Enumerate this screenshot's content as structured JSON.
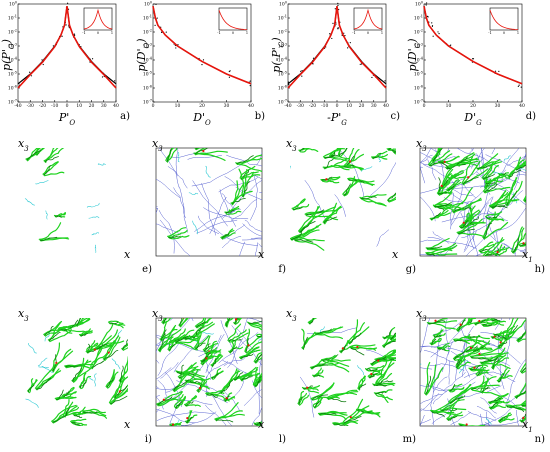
{
  "chart_data": [
    {
      "type": "line",
      "ylabel": "p(P'_O)",
      "xlabel": "P'_O",
      "panel_label": "a)",
      "x_ticks": [
        "-40",
        "-30",
        "-20",
        "-10",
        "0",
        "10",
        "20",
        "30",
        "40"
      ],
      "y_ticks": [
        "10^0",
        "10^-1",
        "10^-2",
        "10^-3",
        "10^-4",
        "10^-5",
        "10^-6",
        "10^-7"
      ],
      "xlim": [
        -40,
        40
      ],
      "log_y": true,
      "inset_x_ticks": [
        "-1",
        "0",
        "1"
      ],
      "series": [
        {
          "color": "#000000",
          "x": [
            -40,
            -30,
            -20,
            -10,
            -5,
            -2,
            0,
            2,
            5,
            10,
            20,
            30,
            40
          ],
          "y": [
            2e-06,
            1e-05,
            8e-05,
            0.001,
            0.006,
            0.03,
            0.7,
            0.03,
            0.006,
            0.001,
            8e-05,
            1e-05,
            2e-06
          ]
        },
        {
          "color": "#e8140c",
          "x": [
            -40,
            -30,
            -20,
            -10,
            -5,
            -2,
            0,
            2,
            5,
            10,
            20,
            30,
            40
          ],
          "y": [
            1e-06,
            9e-06,
            7e-05,
            0.0009,
            0.006,
            0.03,
            0.7,
            0.03,
            0.006,
            0.0009,
            7e-05,
            9e-06,
            1e-06
          ]
        }
      ]
    },
    {
      "type": "line",
      "ylabel": "p(D'_O)",
      "xlabel": "D'_O",
      "panel_label": "b)",
      "x_ticks": [
        "0",
        "10",
        "20",
        "30",
        "40"
      ],
      "y_ticks": [
        "10^0",
        "10^-1",
        "10^-2",
        "10^-3",
        "10^-4",
        "10^-5",
        "10^-6",
        "10^-7"
      ],
      "xlim": [
        0,
        40
      ],
      "log_y": true,
      "inset_x_ticks": [
        "-1",
        "0",
        "1"
      ],
      "series": [
        {
          "color": "#000000",
          "x": [
            0,
            1,
            2,
            5,
            10,
            20,
            30,
            40
          ],
          "y": [
            0.7,
            0.1,
            0.03,
            0.006,
            0.001,
            8e-05,
            1e-05,
            2e-06
          ]
        },
        {
          "color": "#e8140c",
          "x": [
            0,
            1,
            2,
            5,
            10,
            20,
            30,
            40
          ],
          "y": [
            0.7,
            0.1,
            0.03,
            0.006,
            0.001,
            8e-05,
            1e-05,
            2e-06
          ]
        }
      ]
    },
    {
      "type": "line",
      "ylabel": "p(-P'_G)",
      "xlabel": "-P'_G",
      "panel_label": "c)",
      "x_ticks": [
        "-40",
        "-30",
        "-20",
        "-10",
        "0",
        "10",
        "20",
        "30",
        "40"
      ],
      "y_ticks": [
        "10^0",
        "10^-1",
        "10^-2",
        "10^-3",
        "10^-4",
        "10^-5",
        "10^-6",
        "10^-7"
      ],
      "xlim": [
        -40,
        40
      ],
      "log_y": true,
      "inset_x_ticks": [
        "-1",
        "0",
        "1"
      ],
      "series": [
        {
          "color": "#000000",
          "x": [
            -40,
            -30,
            -20,
            -10,
            -5,
            -2,
            0,
            2,
            5,
            10,
            20,
            30,
            40
          ],
          "y": [
            2e-06,
            1e-05,
            8e-05,
            0.001,
            0.006,
            0.03,
            0.7,
            0.03,
            0.006,
            0.001,
            8e-05,
            1e-05,
            2e-06
          ]
        },
        {
          "color": "#e8140c",
          "x": [
            -40,
            -30,
            -20,
            -10,
            -5,
            -2,
            0,
            2,
            5,
            10,
            20,
            30,
            40
          ],
          "y": [
            1e-06,
            9e-06,
            7e-05,
            0.0009,
            0.006,
            0.03,
            0.7,
            0.03,
            0.006,
            0.0009,
            7e-05,
            9e-06,
            1e-06
          ]
        }
      ]
    },
    {
      "type": "line",
      "ylabel": "p(D'_G)",
      "xlabel": "D'_G",
      "panel_label": "d)",
      "x_ticks": [
        "0",
        "10",
        "20",
        "30",
        "40"
      ],
      "y_ticks": [
        "10^0",
        "10^-1",
        "10^-2",
        "10^-3",
        "10^-4",
        "10^-5",
        "10^-6",
        "10^-7"
      ],
      "xlim": [
        0,
        40
      ],
      "log_y": true,
      "inset_x_ticks": [
        "-1",
        "0",
        "1"
      ],
      "series": [
        {
          "color": "#000000",
          "x": [
            0,
            1,
            2,
            5,
            10,
            20,
            30,
            40
          ],
          "y": [
            0.7,
            0.1,
            0.03,
            0.006,
            0.001,
            8e-05,
            1e-05,
            2e-06
          ]
        },
        {
          "color": "#e8140c",
          "x": [
            0,
            1,
            2,
            5,
            10,
            20,
            30,
            40
          ],
          "y": [
            0.7,
            0.1,
            0.03,
            0.006,
            0.001,
            8e-05,
            1e-05,
            2e-06
          ]
        }
      ]
    }
  ],
  "contour_panels": {
    "row1": [
      {
        "ylabel": "x_3",
        "xlabel": "x",
        "panel_label": ""
      },
      {
        "ylabel": "x_3",
        "xlabel": "x",
        "panel_label": "e)"
      },
      {
        "ylabel": "x_3",
        "xlabel": "x",
        "panel_label": "f)"
      },
      {
        "ylabel": "x_3",
        "xlabel": "x_1",
        "panel_label": "g)",
        "after_label": "h)"
      }
    ],
    "row2": [
      {
        "ylabel": "x_3",
        "xlabel": "x",
        "panel_label": ""
      },
      {
        "ylabel": "x_3",
        "xlabel": "x",
        "panel_label": "i)"
      },
      {
        "ylabel": "x_3",
        "xlabel": "",
        "panel_label": "l)"
      },
      {
        "ylabel": "x_3",
        "xlabel": "x_1",
        "panel_label": "m)",
        "after_label": "n)"
      }
    ]
  },
  "colors": {
    "black": "#000000",
    "red": "#e8140c",
    "green": "#1ed21e",
    "blue": "#5a64d2",
    "cyan": "#28c8d2",
    "darkgreen": "#0a780a"
  }
}
